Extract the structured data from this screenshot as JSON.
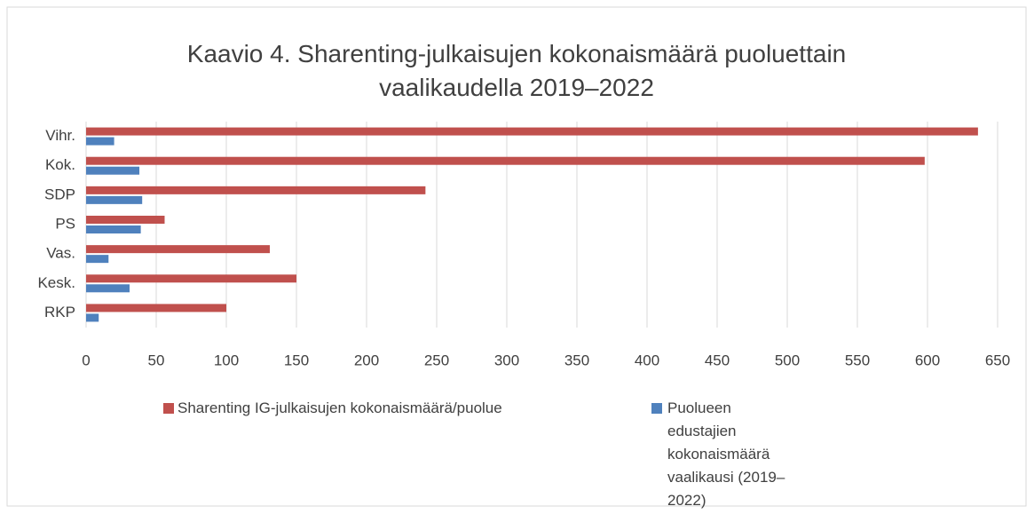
{
  "chart_data": {
    "type": "bar",
    "orientation": "horizontal",
    "title": "Kaavio 4. Sharenting-julkaisujen kokonaismäärä puoluettain vaalikaudella 2019–2022",
    "categories": [
      "Vihr.",
      "Kok.",
      "SDP",
      "PS",
      "Vas.",
      "Kesk.",
      "RKP"
    ],
    "series": [
      {
        "name": "Sharenting IG-julkaisujen kokonaismäärä/puolue",
        "color": "#c0504d",
        "values": [
          636,
          598,
          242,
          56,
          131,
          150,
          100
        ]
      },
      {
        "name": "Puolueen edustajien kokonaismäärä vaalikausi (2019–2022)",
        "color": "#4f81bd",
        "values": [
          20,
          38,
          40,
          39,
          16,
          31,
          9
        ]
      }
    ],
    "xlim": [
      0,
      650
    ],
    "xticks": [
      0,
      50,
      100,
      150,
      200,
      250,
      300,
      350,
      400,
      450,
      500,
      550,
      600,
      650
    ],
    "grid": true,
    "legend": "bottom"
  }
}
